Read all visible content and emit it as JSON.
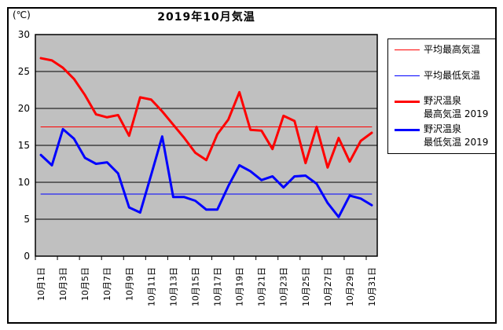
{
  "frame": {
    "title": "2019年10月気温",
    "unit_label": "(℃)"
  },
  "legend": {
    "items": [
      {
        "label_lines": [
          "平均最高気温"
        ],
        "color": "#FF0000",
        "thickness": 1
      },
      {
        "label_lines": [
          "平均最低気温"
        ],
        "color": "#0000FF",
        "thickness": 1
      },
      {
        "label_lines": [
          "野沢温泉",
          "最高気温 2019"
        ],
        "color": "#FF0000",
        "thickness": 3
      },
      {
        "label_lines": [
          "野沢温泉",
          "最低気温 2019"
        ],
        "color": "#0000FF",
        "thickness": 3
      }
    ]
  },
  "chart_data": {
    "type": "line",
    "title": "2019年10月気温",
    "ylabel": "(℃)",
    "ylim": [
      0,
      30
    ],
    "yticks": [
      0,
      5,
      10,
      15,
      20,
      25,
      30
    ],
    "grid": true,
    "plot_bg": "#C0C0C0",
    "grid_color": "#000000",
    "legend_position": "right",
    "x_count": 31,
    "xtick_labels": [
      "10月1日",
      "10月3日",
      "10月5日",
      "10月7日",
      "10月9日",
      "10月11日",
      "10月13日",
      "10月15日",
      "10月17日",
      "10月19日",
      "10月21日",
      "10月23日",
      "10月25日",
      "10月27日",
      "10月29日",
      "10月31日"
    ],
    "xtick_label_days": [
      1,
      3,
      5,
      7,
      9,
      11,
      13,
      15,
      17,
      19,
      21,
      23,
      25,
      27,
      29,
      31
    ],
    "series": [
      {
        "name": "平均最高気温",
        "color": "#FF0000",
        "width": 1,
        "constant": 17.5
      },
      {
        "name": "平均最低気温",
        "color": "#0000FF",
        "width": 1,
        "constant": 8.4
      },
      {
        "name": "野沢温泉 最高気温 2019",
        "color": "#FF0000",
        "width": 3,
        "values": [
          26.8,
          26.5,
          25.5,
          24.0,
          21.8,
          19.2,
          18.8,
          19.1,
          16.3,
          21.5,
          21.2,
          19.6,
          17.8,
          16.0,
          14.0,
          13.0,
          16.5,
          18.5,
          22.2,
          17.1,
          17.0,
          14.5,
          19.0,
          18.3,
          12.6,
          17.5,
          12.0,
          16.0,
          12.8,
          15.6,
          16.7
        ]
      },
      {
        "name": "野沢温泉 最低気温 2019",
        "color": "#0000FF",
        "width": 3,
        "values": [
          13.7,
          12.3,
          17.2,
          15.9,
          13.3,
          12.5,
          12.7,
          11.2,
          6.6,
          5.9,
          11.0,
          16.2,
          8.0,
          8.0,
          7.5,
          6.3,
          6.3,
          9.5,
          12.3,
          11.5,
          10.3,
          10.8,
          9.3,
          10.8,
          10.9,
          9.8,
          7.2,
          5.3,
          8.2,
          7.8,
          6.9
        ]
      }
    ]
  }
}
